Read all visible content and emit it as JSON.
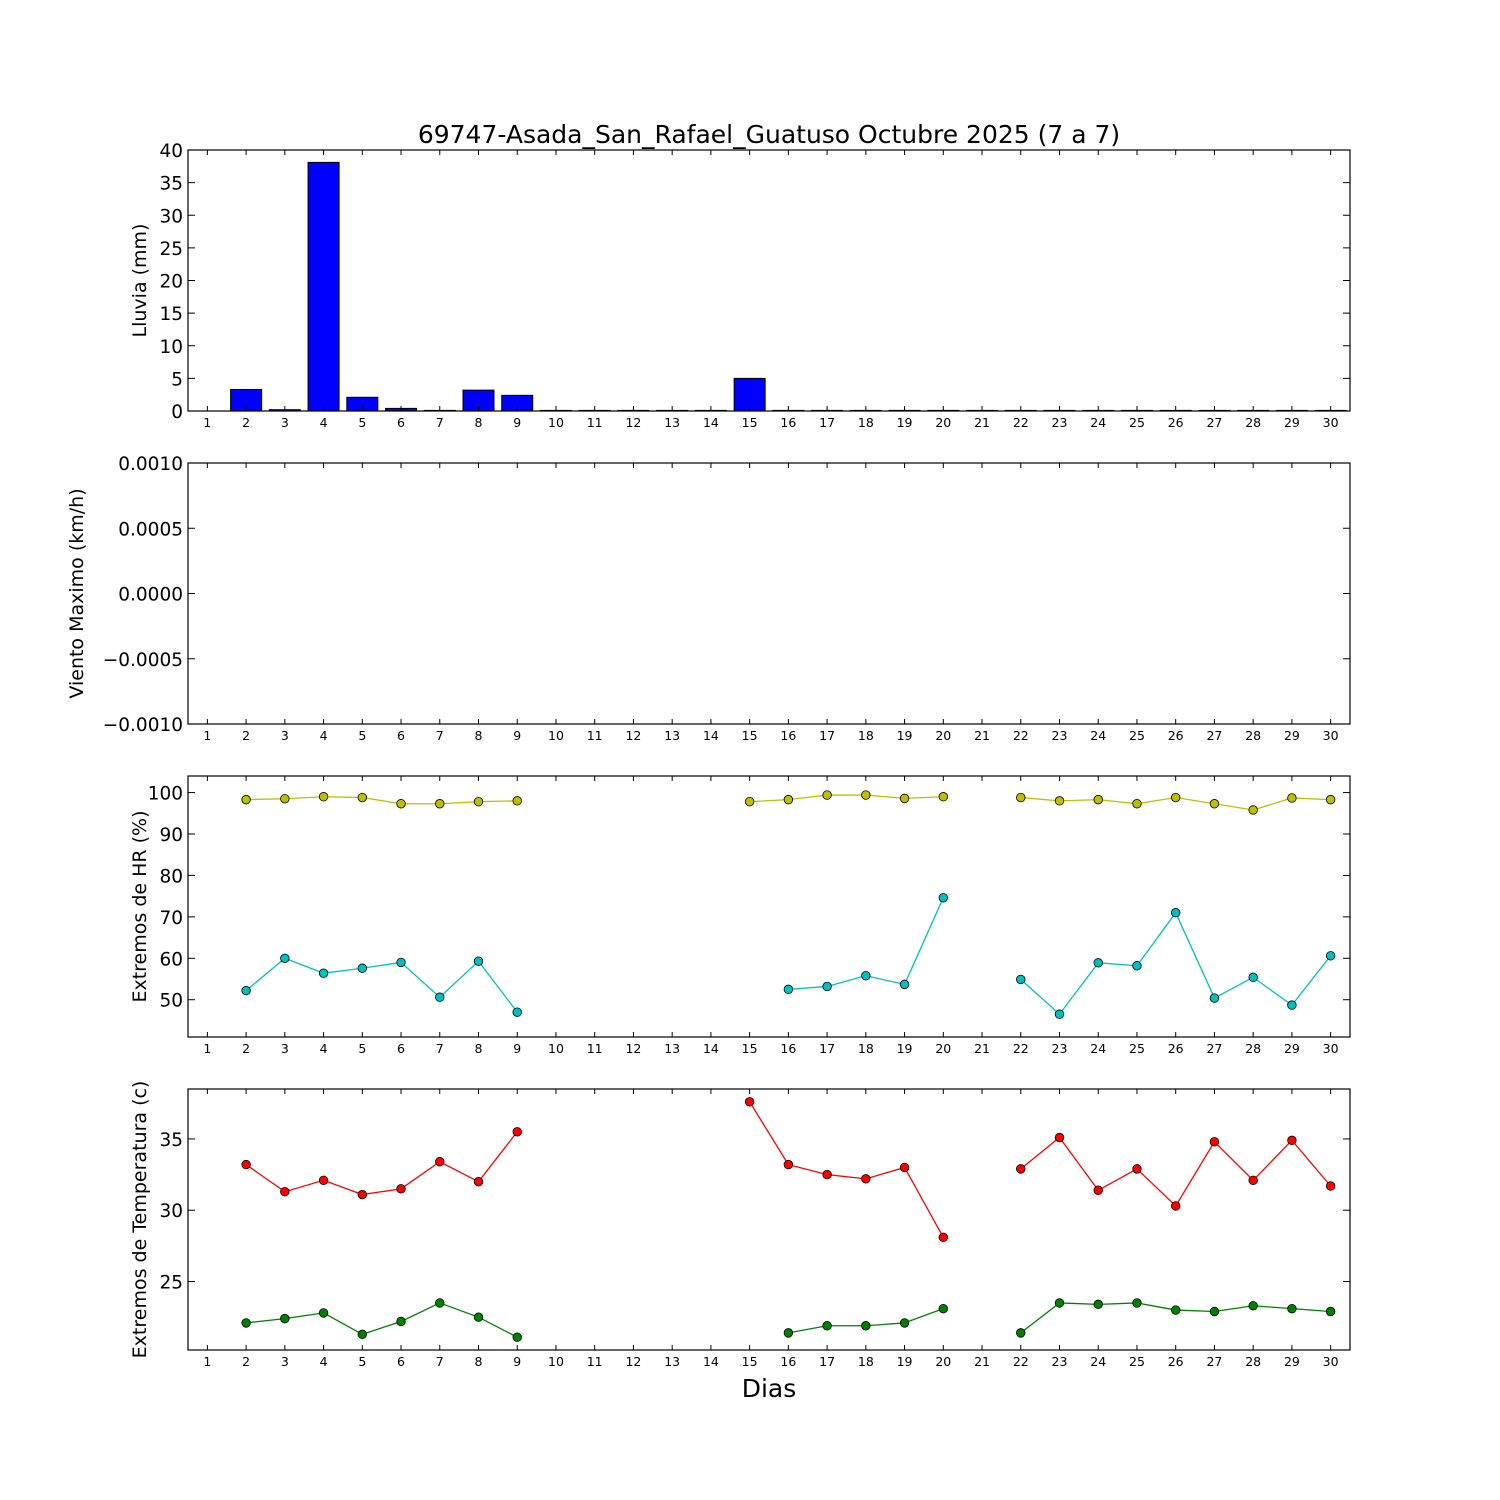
{
  "title": "69747-Asada_San_Rafael_Guatuso Octubre 2025  (7 a 7)",
  "xlabel": "Dias",
  "day_ticks": [
    "1",
    "2",
    "3",
    "4",
    "5",
    "6",
    "7",
    "8",
    "9",
    "10",
    "11",
    "12",
    "13",
    "14",
    "15",
    "16",
    "17",
    "18",
    "19",
    "20",
    "21",
    "22",
    "23",
    "24",
    "25",
    "26",
    "27",
    "28",
    "29",
    "30"
  ],
  "colors": {
    "rain": "#0000ff",
    "hr_max": "#bfbf00",
    "hr_min": "#00bfbf",
    "temp_max": "#ff0000",
    "temp_min": "#008000"
  },
  "chart_data": [
    {
      "type": "bar",
      "ylabel": "Lluvia (mm)",
      "ylim": [
        0,
        40
      ],
      "yticks": [
        "0",
        "5",
        "10",
        "15",
        "20",
        "25",
        "30",
        "35",
        "40"
      ],
      "ytick_values": [
        0,
        5,
        10,
        15,
        20,
        25,
        30,
        35,
        40
      ],
      "xlim": [
        0.5,
        30.5
      ],
      "x": [
        2,
        3,
        4,
        5,
        6,
        7,
        8,
        9,
        10,
        11,
        12,
        13,
        14,
        15,
        16,
        17,
        18,
        19,
        20,
        21,
        22,
        23,
        24,
        25,
        26,
        27,
        28,
        29,
        30
      ],
      "values": [
        3.3,
        0.2,
        38.1,
        2.1,
        0.4,
        0,
        3.2,
        2.4,
        0,
        0,
        0,
        0,
        0,
        5.0,
        0,
        0,
        0,
        0,
        0,
        0,
        0,
        0,
        0,
        0,
        0,
        0,
        0,
        0,
        0
      ]
    },
    {
      "type": "line",
      "ylabel": "Viento Maximo (km/h)",
      "ylim": [
        -0.001,
        0.001
      ],
      "yticks": [
        "−0.0010",
        "−0.0005",
        "0.0000",
        "0.0005",
        "0.0010"
      ],
      "ytick_values": [
        -0.001,
        -0.0005,
        0,
        0.0005,
        0.001
      ],
      "xlim": [
        0.5,
        30.5
      ],
      "series": []
    },
    {
      "type": "line",
      "ylabel": "Extremos de HR (%)",
      "ylim": [
        41,
        104
      ],
      "yticks": [
        "50",
        "60",
        "70",
        "80",
        "90",
        "100"
      ],
      "ytick_values": [
        50,
        60,
        70,
        80,
        90,
        100
      ],
      "xlim": [
        0.5,
        30.5
      ],
      "series": [
        {
          "color_key": "hr_max",
          "segments": [
            {
              "x": [
                2,
                3,
                4,
                5,
                6,
                7,
                8,
                9
              ],
              "y": [
                98.3,
                98.5,
                99.0,
                98.8,
                97.3,
                97.3,
                97.8,
                98.0
              ]
            },
            {
              "x": [
                15,
                16,
                17,
                18,
                19,
                20
              ],
              "y": [
                97.8,
                98.3,
                99.4,
                99.4,
                98.6,
                99.0
              ]
            },
            {
              "x": [
                22,
                23,
                24,
                25,
                26,
                27,
                28,
                29,
                30
              ],
              "y": [
                98.8,
                98.0,
                98.3,
                97.3,
                98.8,
                97.3,
                95.8,
                98.7,
                98.3
              ]
            }
          ]
        },
        {
          "color_key": "hr_min",
          "segments": [
            {
              "x": [
                2,
                3,
                4,
                5,
                6,
                7,
                8,
                9
              ],
              "y": [
                52.2,
                60.0,
                56.4,
                57.6,
                59.0,
                50.6,
                59.3,
                47.0
              ]
            },
            {
              "x": [
                16,
                17,
                18,
                19,
                20
              ],
              "y": [
                52.5,
                53.2,
                55.8,
                53.7,
                74.6
              ]
            },
            {
              "x": [
                22,
                23,
                24,
                25,
                26,
                27,
                28,
                29,
                30
              ],
              "y": [
                54.9,
                46.5,
                58.9,
                58.2,
                71.0,
                50.4,
                55.4,
                48.7,
                60.6
              ]
            }
          ]
        }
      ]
    },
    {
      "type": "line",
      "ylabel": "Extremos de Temperatura (c)",
      "ylim": [
        20.2,
        38.5
      ],
      "yticks": [
        "25",
        "30",
        "35"
      ],
      "ytick_values": [
        25,
        30,
        35
      ],
      "xlim": [
        0.5,
        30.5
      ],
      "series": [
        {
          "color_key": "temp_max",
          "segments": [
            {
              "x": [
                2,
                3,
                4,
                5,
                6,
                7,
                8,
                9
              ],
              "y": [
                33.2,
                31.3,
                32.1,
                31.1,
                31.5,
                33.4,
                32.0,
                35.5
              ]
            },
            {
              "x": [
                15,
                16,
                17,
                18,
                19,
                20
              ],
              "y": [
                37.6,
                33.2,
                32.5,
                32.2,
                33.0,
                28.1
              ]
            },
            {
              "x": [
                22,
                23,
                24,
                25,
                26,
                27,
                28,
                29,
                30
              ],
              "y": [
                32.9,
                35.1,
                31.4,
                32.9,
                30.3,
                34.8,
                32.1,
                34.9,
                31.7
              ]
            }
          ]
        },
        {
          "color_key": "temp_min",
          "segments": [
            {
              "x": [
                2,
                3,
                4,
                5,
                6,
                7,
                8,
                9
              ],
              "y": [
                22.1,
                22.4,
                22.8,
                21.3,
                22.2,
                23.5,
                22.5,
                21.1
              ]
            },
            {
              "x": [
                16,
                17,
                18,
                19,
                20
              ],
              "y": [
                21.4,
                21.9,
                21.9,
                22.1,
                23.1
              ]
            },
            {
              "x": [
                22,
                23,
                24,
                25,
                26,
                27,
                28,
                29,
                30
              ],
              "y": [
                21.4,
                23.5,
                23.4,
                23.5,
                23.0,
                22.9,
                23.3,
                23.1,
                22.9
              ]
            }
          ]
        }
      ]
    }
  ]
}
